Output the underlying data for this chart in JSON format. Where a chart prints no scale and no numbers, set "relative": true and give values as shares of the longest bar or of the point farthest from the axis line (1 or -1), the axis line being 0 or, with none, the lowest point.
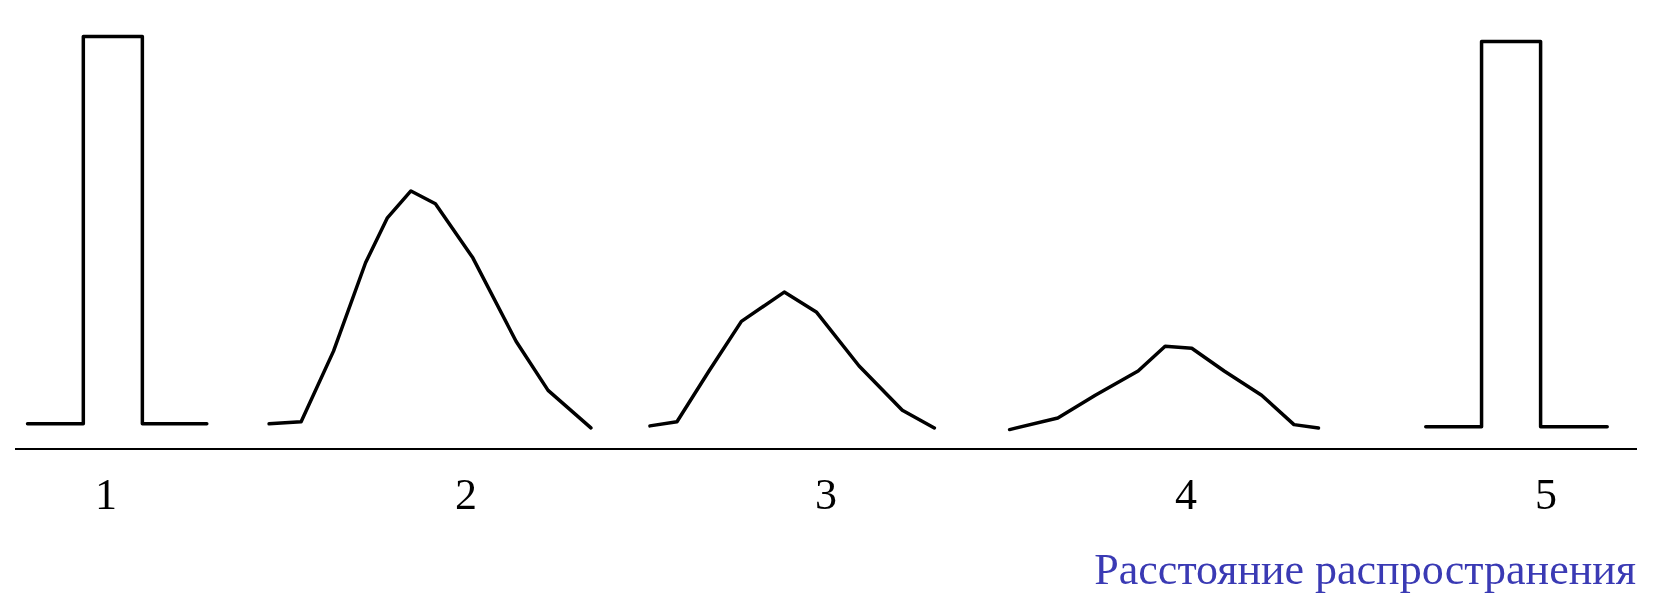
{
  "chart_data": {
    "type": "line",
    "relative": true,
    "xlabel": "Расстояние распространения",
    "xlim": [
      0.75,
      5.25
    ],
    "xticks": [
      1,
      2,
      3,
      4,
      5
    ],
    "grid": false,
    "legend": false,
    "marker": "none",
    "line_style": "solid",
    "series": [
      {
        "color": "#000000",
        "x": [
          0.782,
          0.937,
          0.937,
          1.101,
          1.101,
          1.28
        ],
        "values": [
          0.062,
          0.062,
          1.0,
          1.0,
          0.062,
          0.062
        ]
      },
      {
        "color": "#000000",
        "x": [
          1.453,
          1.542,
          1.632,
          1.721,
          1.781,
          1.847,
          1.915,
          2.019,
          2.139,
          2.228,
          2.347
        ],
        "values": [
          0.062,
          0.067,
          0.238,
          0.452,
          0.56,
          0.626,
          0.595,
          0.464,
          0.262,
          0.143,
          0.052
        ]
      },
      {
        "color": "#000000",
        "x": [
          2.511,
          2.586,
          2.675,
          2.765,
          2.884,
          2.973,
          3.092,
          3.212,
          3.301
        ],
        "values": [
          0.057,
          0.067,
          0.19,
          0.31,
          0.381,
          0.333,
          0.202,
          0.095,
          0.052
        ]
      },
      {
        "color": "#000000",
        "x": [
          3.51,
          3.644,
          3.748,
          3.867,
          3.942,
          4.016,
          4.106,
          4.21,
          4.3,
          4.368
        ],
        "values": [
          0.048,
          0.076,
          0.131,
          0.19,
          0.25,
          0.245,
          0.19,
          0.131,
          0.06,
          0.052
        ]
      },
      {
        "color": "#000000",
        "x": [
          4.666,
          4.821,
          4.821,
          4.985,
          4.985,
          5.17
        ],
        "values": [
          0.055,
          0.055,
          0.988,
          0.988,
          0.055,
          0.055
        ]
      }
    ]
  }
}
